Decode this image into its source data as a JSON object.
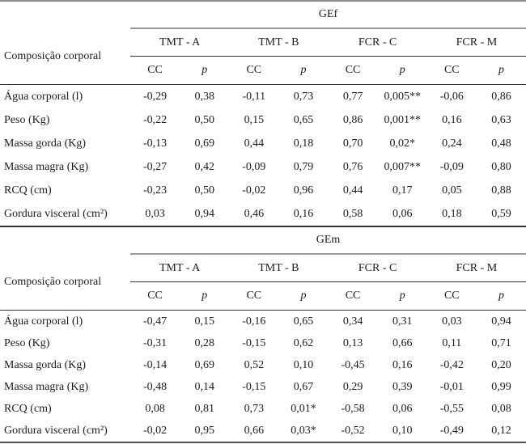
{
  "colors": {
    "rule_light": "#8d8d8d",
    "rule_dark": "#333333",
    "text": "#1c1c1c",
    "background": "#ffffff"
  },
  "header": {
    "row_label": "Composição corporal",
    "groups": [
      "TMT - A",
      "TMT - B",
      "FCR - C",
      "FCR - M"
    ],
    "sub": {
      "cc": "CC",
      "p": "p"
    }
  },
  "t0": {
    "title": "GEf",
    "rows": [
      {
        "label": "Água corporal (l)",
        "values": [
          "-0,29",
          "0,38",
          "-0,11",
          "0,73",
          "0,77",
          "0,005**",
          "-0,06",
          "0,86"
        ]
      },
      {
        "label": "Peso (Kg)",
        "values": [
          "-0,22",
          "0,50",
          "0,15",
          "0,65",
          "0,86",
          "0,001**",
          "0,16",
          "0,63"
        ]
      },
      {
        "label": "Massa gorda (Kg)",
        "values": [
          "-0,13",
          "0,69",
          "0,44",
          "0,18",
          "0,70",
          "0,02*",
          "0,24",
          "0,48"
        ]
      },
      {
        "label": "Massa magra (Kg)",
        "values": [
          "-0,27",
          "0,42",
          "-0,09",
          "0,79",
          "0,76",
          "0,007**",
          "-0,09",
          "0,80"
        ]
      },
      {
        "label": "RCQ (cm)",
        "values": [
          "-0,23",
          "0,50",
          "-0,02",
          "0,96",
          "0,44",
          "0,17",
          "0,05",
          "0,88"
        ]
      },
      {
        "label": "Gordura visceral (cm²)",
        "values": [
          "0,03",
          "0,94",
          "0,46",
          "0,16",
          "0,58",
          "0,06",
          "0,18",
          "0,59"
        ]
      }
    ]
  },
  "t1": {
    "title": "GEm",
    "rows": [
      {
        "label": "Água corporal (l)",
        "values": [
          "-0,47",
          "0,15",
          "-0,16",
          "0,65",
          "0,34",
          "0,31",
          "0,03",
          "0,94"
        ]
      },
      {
        "label": "Peso (Kg)",
        "values": [
          "-0,31",
          "0,28",
          "-0,15",
          "0,62",
          "0,13",
          "0,66",
          "0,11",
          "0,71"
        ]
      },
      {
        "label": "Massa gorda (Kg)",
        "values": [
          "-0,14",
          "0,69",
          "0,52",
          "0,10",
          "-0,45",
          "0,16",
          "-0,42",
          "0,20"
        ]
      },
      {
        "label": "Massa magra (Kg)",
        "values": [
          "-0,48",
          "0,14",
          "-0,15",
          "0,67",
          "0,29",
          "0,39",
          "-0,01",
          "0,99"
        ]
      },
      {
        "label": "RCQ (cm)",
        "values": [
          "0,08",
          "0,81",
          "0,73",
          "0,01*",
          "-0,58",
          "0,06",
          "-0,55",
          "0,08"
        ]
      },
      {
        "label": "Gordura visceral (cm²)",
        "values": [
          "-0,02",
          "0,95",
          "0,66",
          "0,03*",
          "-0,52",
          "0,10",
          "-0,49",
          "0,12"
        ]
      }
    ]
  }
}
